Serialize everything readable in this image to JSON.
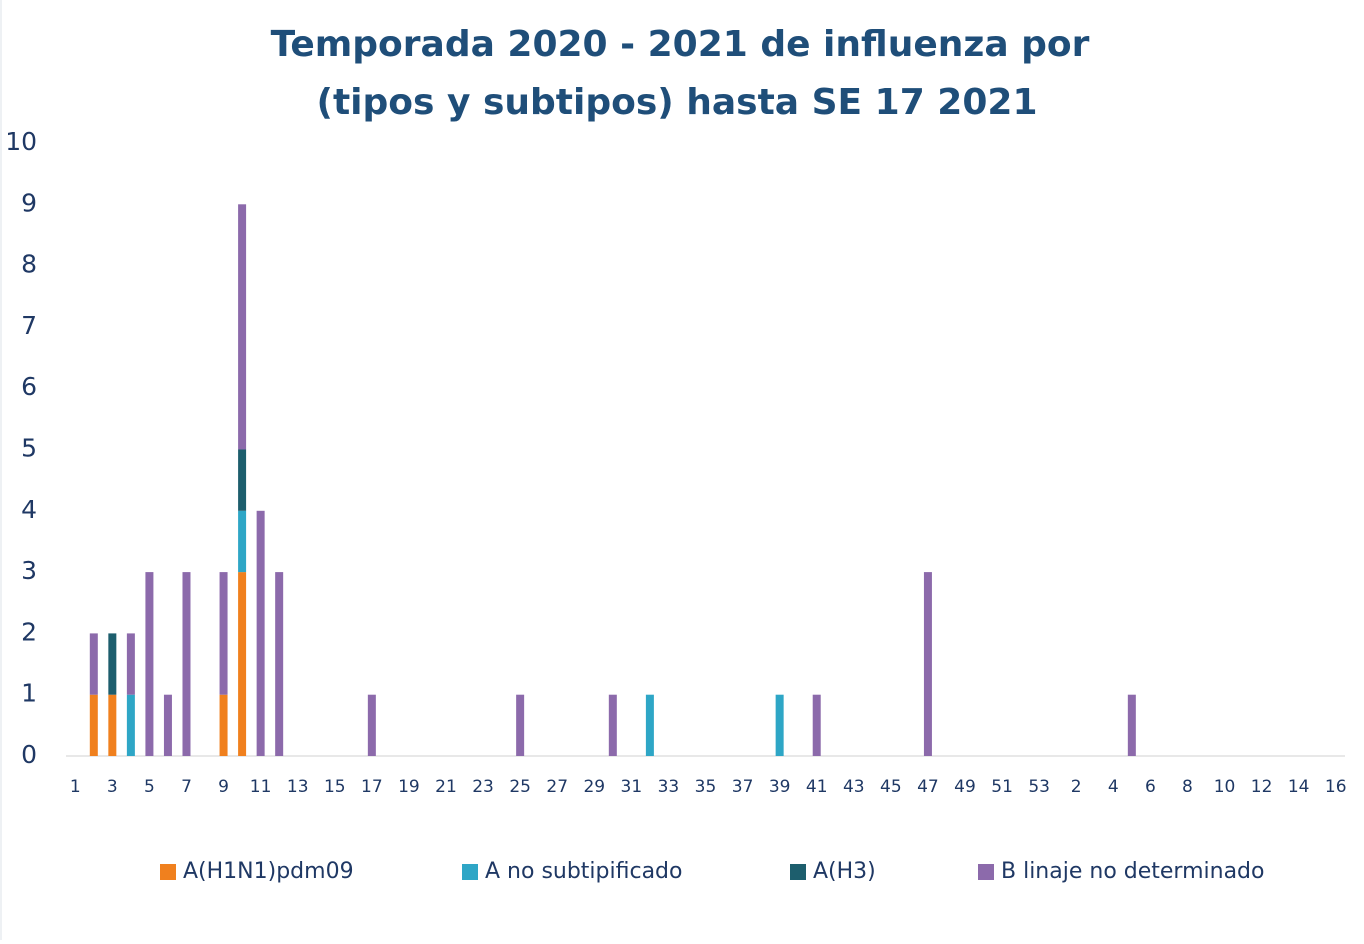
{
  "chart_data": {
    "type": "stacked_bar",
    "title": [
      "Temporada 2020 - 2021 de influenza por",
      "(tipos y subtipos) hasta SE 17 2021"
    ],
    "categories": [
      "1",
      null,
      "3",
      null,
      "5",
      null,
      "7",
      null,
      "9",
      null,
      "11",
      null,
      "13",
      null,
      "15",
      null,
      "17",
      null,
      "19",
      null,
      "21",
      null,
      "23",
      null,
      "25",
      null,
      "27",
      null,
      "29",
      null,
      "31",
      null,
      "33",
      null,
      "35",
      null,
      "37",
      null,
      "39",
      null,
      "41",
      null,
      "43",
      null,
      "45",
      null,
      "47",
      null,
      "49",
      null,
      "51",
      null,
      "53",
      null,
      "2",
      null,
      "4",
      null,
      "6",
      null,
      "8",
      null,
      "10",
      null,
      "12",
      null,
      "14",
      null,
      "16"
    ],
    "series": [
      {
        "name": "A(H1N1)pdm09",
        "color": "#f0801e",
        "values": [
          0,
          1,
          1,
          0,
          0,
          0,
          0,
          0,
          1,
          3,
          0,
          0,
          0,
          0,
          0,
          0,
          0,
          0,
          0,
          0,
          0,
          0,
          0,
          0,
          0,
          0,
          0,
          0,
          0,
          0,
          0,
          0,
          0,
          0,
          0,
          0,
          0,
          0,
          0,
          0,
          0,
          0,
          0,
          0,
          0,
          0,
          0,
          0,
          0,
          0,
          0,
          0,
          0,
          0,
          0,
          0,
          0,
          0,
          0,
          0,
          0,
          0,
          0,
          0,
          0,
          0,
          0,
          0,
          0
        ]
      },
      {
        "name": "A no subtipificado",
        "color": "#2ea6c6",
        "values": [
          0,
          0,
          0,
          1,
          0,
          0,
          0,
          0,
          0,
          1,
          0,
          0,
          0,
          0,
          0,
          0,
          0,
          0,
          0,
          0,
          0,
          0,
          0,
          0,
          0,
          0,
          0,
          0,
          0,
          0,
          0,
          1,
          0,
          0,
          0,
          0,
          0,
          0,
          1,
          0,
          0,
          0,
          0,
          0,
          0,
          0,
          0,
          0,
          0,
          0,
          0,
          0,
          0,
          0,
          0,
          0,
          0,
          0,
          0,
          0,
          0,
          0,
          0,
          0,
          0,
          0,
          0,
          0,
          0
        ]
      },
      {
        "name": "A(H3)",
        "color": "#1d5e6d",
        "values": [
          0,
          0,
          1,
          0,
          0,
          0,
          0,
          0,
          0,
          1,
          0,
          0,
          0,
          0,
          0,
          0,
          0,
          0,
          0,
          0,
          0,
          0,
          0,
          0,
          0,
          0,
          0,
          0,
          0,
          0,
          0,
          0,
          0,
          0,
          0,
          0,
          0,
          0,
          0,
          0,
          0,
          0,
          0,
          0,
          0,
          0,
          0,
          0,
          0,
          0,
          0,
          0,
          0,
          0,
          0,
          0,
          0,
          0,
          0,
          0,
          0,
          0,
          0,
          0,
          0,
          0,
          0,
          0,
          0
        ]
      },
      {
        "name": "B linaje no determinado",
        "color": "#8c6aab",
        "values": [
          0,
          1,
          0,
          1,
          3,
          1,
          3,
          0,
          2,
          4,
          4,
          3,
          0,
          0,
          0,
          0,
          1,
          0,
          0,
          0,
          0,
          0,
          0,
          0,
          1,
          0,
          0,
          0,
          0,
          1,
          0,
          0,
          0,
          0,
          0,
          0,
          0,
          0,
          0,
          0,
          1,
          0,
          0,
          0,
          0,
          0,
          3,
          0,
          0,
          0,
          0,
          0,
          0,
          0,
          0,
          0,
          0,
          1,
          0,
          0,
          0,
          0,
          0,
          0,
          0,
          0,
          0,
          0,
          0
        ]
      }
    ],
    "ylim": [
      0,
      10
    ],
    "yticks": [
      0,
      1,
      2,
      3,
      4,
      5,
      6,
      7,
      8,
      9,
      10
    ],
    "grid": false,
    "legend": "bottom"
  }
}
